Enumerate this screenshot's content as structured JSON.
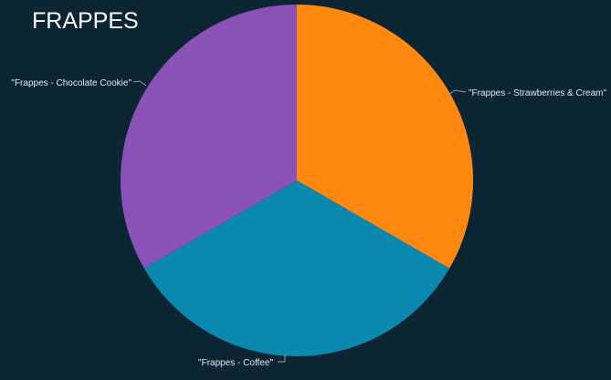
{
  "chart_data": {
    "type": "pie",
    "title": "FRAPPES",
    "slices": [
      {
        "label": "\"Frappes - Strawberries & Cream\"",
        "value": 1,
        "color": "#ff8810"
      },
      {
        "label": "\"Frappes - Coffee\"",
        "value": 1,
        "color": "#0b88b0"
      },
      {
        "label": "\"Frappes - Chocolate Cookie\"",
        "value": 1,
        "color": "#8a52b6"
      }
    ],
    "start_angle_deg": 0,
    "direction": "clockwise",
    "legend": "none",
    "label_placement": "outside-with-leader-lines"
  },
  "colors": {
    "background": "#0b2533",
    "title_text": "#ffffff",
    "label_text": "#e4e8ea"
  }
}
